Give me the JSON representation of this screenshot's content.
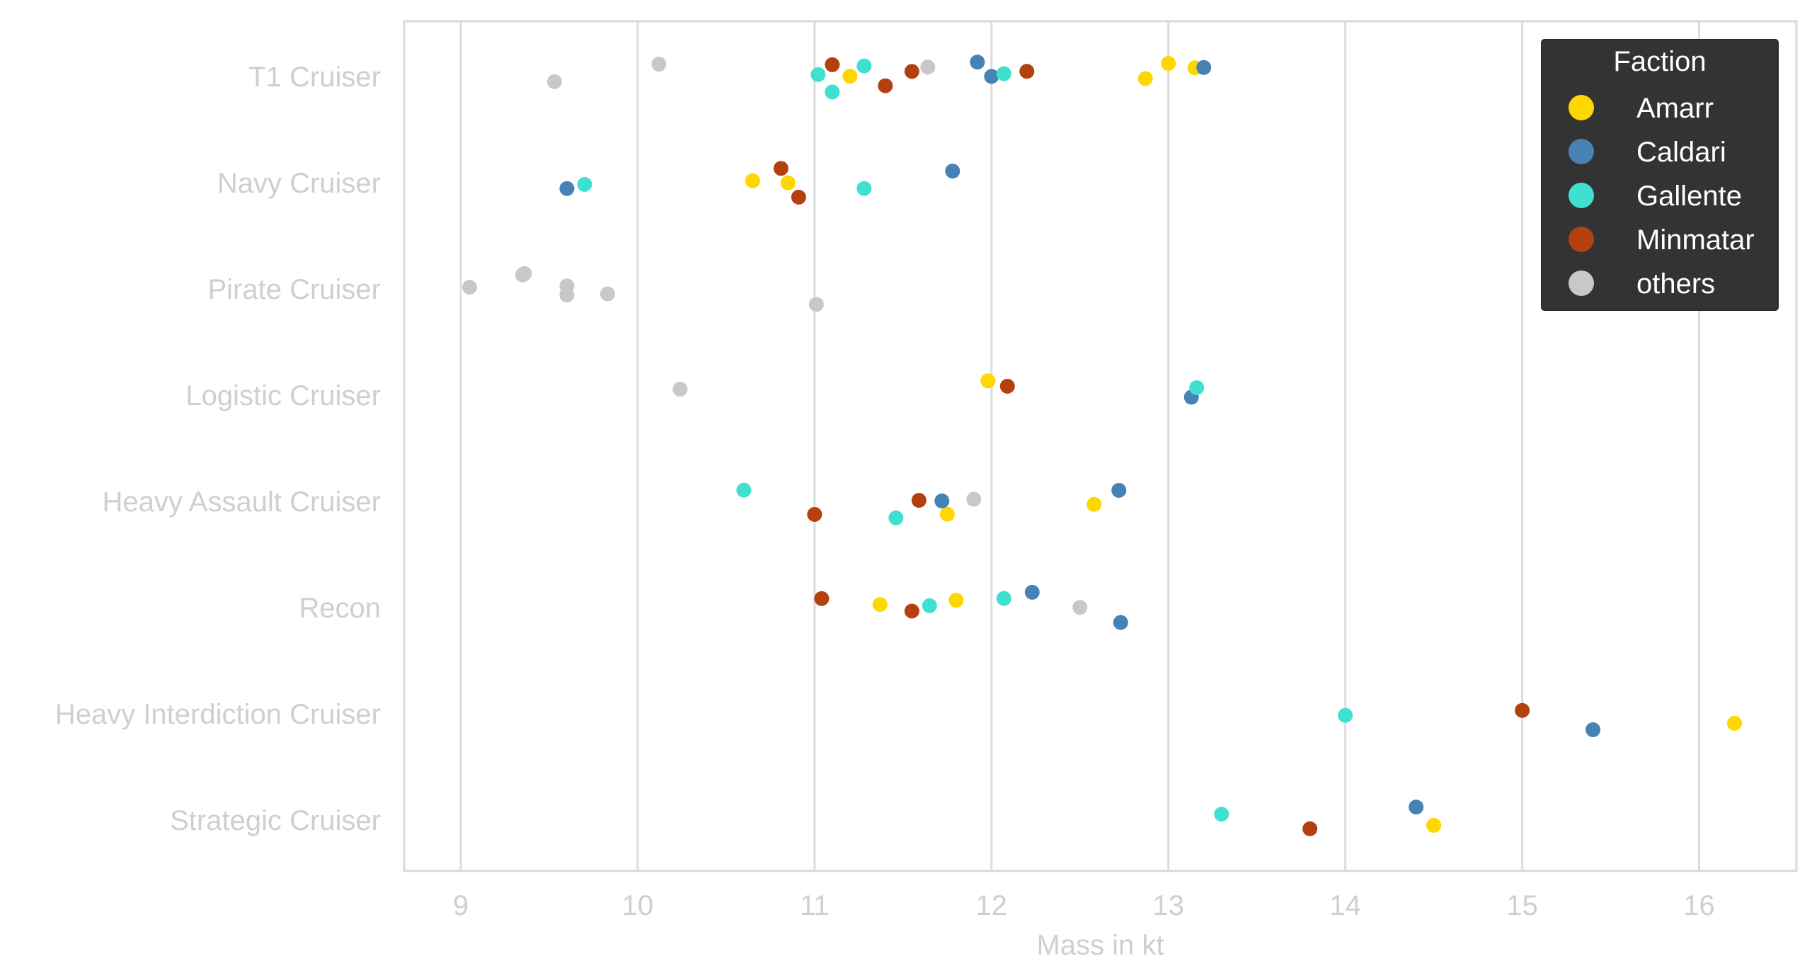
{
  "chart_data": {
    "type": "scatter",
    "subtype": "strip",
    "title": "",
    "xlabel": "Mass in kt",
    "ylabel": "",
    "xlim": [
      8.68,
      16.55
    ],
    "xticks": [
      9,
      10,
      11,
      12,
      13,
      14,
      15,
      16
    ],
    "grid": "vertical",
    "categories": [
      "T1 Cruiser",
      "Navy Cruiser",
      "Pirate Cruiser",
      "Logistic Cruiser",
      "Heavy Assault Cruiser",
      "Recon",
      "Heavy Interdiction Cruiser",
      "Strategic Cruiser"
    ],
    "legend": {
      "title": "Faction",
      "placement": "top-right",
      "background": "#333333"
    },
    "series": [
      {
        "name": "Amarr",
        "color": "#FFD700",
        "points": [
          {
            "category": "T1 Cruiser",
            "x": 11.2
          },
          {
            "category": "T1 Cruiser",
            "x": 12.87
          },
          {
            "category": "T1 Cruiser",
            "x": 13.0
          },
          {
            "category": "T1 Cruiser",
            "x": 13.15
          },
          {
            "category": "Navy Cruiser",
            "x": 10.65
          },
          {
            "category": "Navy Cruiser",
            "x": 10.85
          },
          {
            "category": "Logistic Cruiser",
            "x": 11.98
          },
          {
            "category": "Heavy Assault Cruiser",
            "x": 11.75
          },
          {
            "category": "Heavy Assault Cruiser",
            "x": 12.58
          },
          {
            "category": "Recon",
            "x": 11.37
          },
          {
            "category": "Recon",
            "x": 11.8
          },
          {
            "category": "Heavy Interdiction Cruiser",
            "x": 16.2
          },
          {
            "category": "Strategic Cruiser",
            "x": 14.5
          }
        ]
      },
      {
        "name": "Caldari",
        "color": "#4682B4",
        "points": [
          {
            "category": "T1 Cruiser",
            "x": 11.92
          },
          {
            "category": "T1 Cruiser",
            "x": 12.0
          },
          {
            "category": "T1 Cruiser",
            "x": 13.2
          },
          {
            "category": "Navy Cruiser",
            "x": 9.6
          },
          {
            "category": "Navy Cruiser",
            "x": 11.78
          },
          {
            "category": "Logistic Cruiser",
            "x": 13.13
          },
          {
            "category": "Heavy Assault Cruiser",
            "x": 11.72
          },
          {
            "category": "Heavy Assault Cruiser",
            "x": 12.72
          },
          {
            "category": "Recon",
            "x": 12.23
          },
          {
            "category": "Recon",
            "x": 12.73
          },
          {
            "category": "Heavy Interdiction Cruiser",
            "x": 15.4
          },
          {
            "category": "Strategic Cruiser",
            "x": 14.4
          }
        ]
      },
      {
        "name": "Gallente",
        "color": "#40E0D0",
        "points": [
          {
            "category": "T1 Cruiser",
            "x": 11.02
          },
          {
            "category": "T1 Cruiser",
            "x": 11.1
          },
          {
            "category": "T1 Cruiser",
            "x": 11.28
          },
          {
            "category": "T1 Cruiser",
            "x": 12.07
          },
          {
            "category": "Navy Cruiser",
            "x": 9.7
          },
          {
            "category": "Navy Cruiser",
            "x": 11.28
          },
          {
            "category": "Logistic Cruiser",
            "x": 13.16
          },
          {
            "category": "Heavy Assault Cruiser",
            "x": 10.6
          },
          {
            "category": "Heavy Assault Cruiser",
            "x": 11.46
          },
          {
            "category": "Recon",
            "x": 11.65
          },
          {
            "category": "Recon",
            "x": 12.07
          },
          {
            "category": "Heavy Interdiction Cruiser",
            "x": 14.0
          },
          {
            "category": "Strategic Cruiser",
            "x": 13.3
          }
        ]
      },
      {
        "name": "Minmatar",
        "color": "#B5400F",
        "points": [
          {
            "category": "T1 Cruiser",
            "x": 11.1
          },
          {
            "category": "T1 Cruiser",
            "x": 11.4
          },
          {
            "category": "T1 Cruiser",
            "x": 11.55
          },
          {
            "category": "T1 Cruiser",
            "x": 12.2
          },
          {
            "category": "Navy Cruiser",
            "x": 10.81
          },
          {
            "category": "Navy Cruiser",
            "x": 10.91
          },
          {
            "category": "Logistic Cruiser",
            "x": 12.09
          },
          {
            "category": "Heavy Assault Cruiser",
            "x": 11.0
          },
          {
            "category": "Heavy Assault Cruiser",
            "x": 11.59
          },
          {
            "category": "Recon",
            "x": 11.04
          },
          {
            "category": "Recon",
            "x": 11.55
          },
          {
            "category": "Heavy Interdiction Cruiser",
            "x": 15.0
          },
          {
            "category": "Strategic Cruiser",
            "x": 13.8
          }
        ]
      },
      {
        "name": "others",
        "color": "#C8C8C8",
        "points": [
          {
            "category": "T1 Cruiser",
            "x": 9.53
          },
          {
            "category": "T1 Cruiser",
            "x": 10.12
          },
          {
            "category": "T1 Cruiser",
            "x": 11.64
          },
          {
            "category": "Pirate Cruiser",
            "x": 9.05
          },
          {
            "category": "Pirate Cruiser",
            "x": 9.35
          },
          {
            "category": "Pirate Cruiser",
            "x": 9.36
          },
          {
            "category": "Pirate Cruiser",
            "x": 9.6
          },
          {
            "category": "Pirate Cruiser",
            "x": 9.6
          },
          {
            "category": "Pirate Cruiser",
            "x": 9.83
          },
          {
            "category": "Pirate Cruiser",
            "x": 11.01
          },
          {
            "category": "Logistic Cruiser",
            "x": 10.24
          },
          {
            "category": "Heavy Assault Cruiser",
            "x": 11.9
          },
          {
            "category": "Recon",
            "x": 12.5
          }
        ]
      }
    ]
  }
}
